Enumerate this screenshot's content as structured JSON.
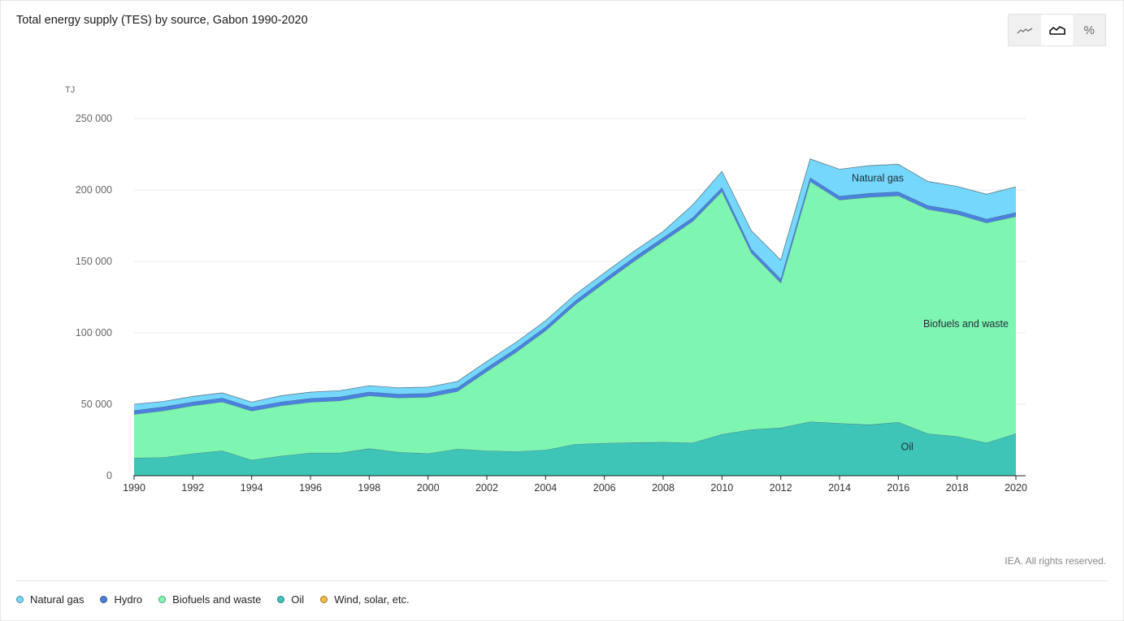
{
  "header": {
    "title": "Total energy supply (TES) by source, Gabon 1990-2020"
  },
  "view_toggle": [
    {
      "name": "line-chart-icon",
      "active": false
    },
    {
      "name": "area-chart-icon",
      "active": true
    },
    {
      "name": "percent-icon",
      "active": false,
      "label": "%"
    }
  ],
  "footer": {
    "credit": "IEA. All rights reserved."
  },
  "legend": [
    {
      "label": "Natural gas",
      "color": "#74d7fb"
    },
    {
      "label": "Hydro",
      "color": "#4b82e0"
    },
    {
      "label": "Biofuels and waste",
      "color": "#7ff5b2"
    },
    {
      "label": "Oil",
      "color": "#3ec5b8"
    },
    {
      "label": "Wind, solar, etc.",
      "color": "#f4b942"
    }
  ],
  "chart_data": {
    "type": "area",
    "stacked": true,
    "ylabel": "TJ",
    "ylim": [
      0,
      250000
    ],
    "yticks": [
      0,
      50000,
      100000,
      150000,
      200000,
      250000
    ],
    "ytick_labels": [
      "0",
      "50 000",
      "100 000",
      "150 000",
      "200 000",
      "250 000"
    ],
    "xticks": [
      1990,
      1992,
      1994,
      1996,
      1998,
      2000,
      2002,
      2004,
      2006,
      2008,
      2010,
      2012,
      2014,
      2016,
      2018,
      2020
    ],
    "grid": true,
    "x": [
      1990,
      1991,
      1992,
      1993,
      1994,
      1995,
      1996,
      1997,
      1998,
      1999,
      2000,
      2001,
      2002,
      2003,
      2004,
      2005,
      2006,
      2007,
      2008,
      2009,
      2010,
      2011,
      2012,
      2013,
      2014,
      2015,
      2016,
      2017,
      2018,
      2019,
      2020
    ],
    "series": [
      {
        "name": "Oil",
        "color": "#3ec5b8",
        "values": [
          12500,
          12800,
          15500,
          17500,
          11000,
          13800,
          16000,
          16000,
          19000,
          16500,
          15500,
          18700,
          17500,
          17000,
          18000,
          22000,
          22800,
          23200,
          23500,
          23000,
          29000,
          32300,
          33500,
          37800,
          36700,
          35700,
          37500,
          29500,
          27500,
          23000,
          29500
        ]
      },
      {
        "name": "Biofuels and waste",
        "color": "#7ff5b2",
        "values": [
          30500,
          32700,
          33500,
          34200,
          34300,
          35200,
          35500,
          36500,
          37000,
          38000,
          39500,
          40300,
          55500,
          69500,
          83500,
          97700,
          112200,
          126800,
          140500,
          155000,
          170000,
          123700,
          101500,
          168200,
          156300,
          159300,
          158500,
          157000,
          155500,
          154000,
          152000
        ]
      },
      {
        "name": "Hydro",
        "color": "#4b82e0",
        "values": [
          2700,
          2700,
          2700,
          2700,
          2700,
          2700,
          2700,
          2700,
          2700,
          2700,
          2700,
          2700,
          2700,
          2700,
          2700,
          2700,
          2700,
          2700,
          2700,
          2700,
          2700,
          2700,
          2700,
          2700,
          2700,
          2700,
          2700,
          2700,
          2700,
          2700,
          2700
        ]
      },
      {
        "name": "Natural gas",
        "color": "#74d7fb",
        "values": [
          4300,
          3800,
          3800,
          3600,
          3500,
          4300,
          4300,
          4300,
          4300,
          4300,
          4300,
          4300,
          4300,
          4300,
          4300,
          4300,
          4300,
          4300,
          4300,
          8800,
          11300,
          12800,
          13300,
          13000,
          18800,
          19300,
          19300,
          16800,
          16800,
          17300,
          18000
        ]
      },
      {
        "name": "Wind, solar, etc.",
        "color": "#f4b942",
        "values": [
          0,
          0,
          0,
          0,
          0,
          0,
          0,
          0,
          0,
          0,
          0,
          0,
          0,
          0,
          0,
          0,
          0,
          0,
          0,
          0,
          0,
          0,
          0,
          0,
          0,
          0,
          0,
          0,
          0,
          0,
          0
        ]
      }
    ],
    "annotations": [
      {
        "text": "Natural gas",
        "x": 2015.3,
        "y": 206000
      },
      {
        "text": "Biofuels and waste",
        "x": 2018.3,
        "y": 104000
      },
      {
        "text": "Oil",
        "x": 2016.3,
        "y": 18000
      }
    ]
  }
}
